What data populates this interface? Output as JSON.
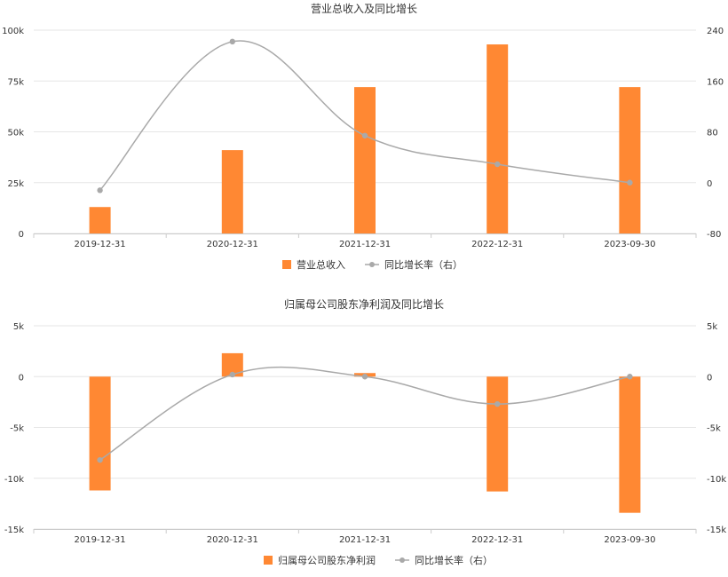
{
  "colors": {
    "bar": "#ff8833",
    "line": "#a9a9a9",
    "grid": "#e6e6e6",
    "axis": "#cccccc"
  },
  "chart_data": [
    {
      "type": "bar",
      "title": "营业总收入及同比增长",
      "categories": [
        "2019-12-31",
        "2020-12-31",
        "2021-12-31",
        "2022-12-31",
        "2023-09-30"
      ],
      "series": [
        {
          "name": "营业总收入",
          "type": "bar",
          "axis": "left",
          "values": [
            13000,
            41000,
            72000,
            93000,
            72000
          ]
        },
        {
          "name": "同比增长率（右）",
          "type": "line",
          "axis": "right",
          "values": [
            -12,
            222,
            74,
            29,
            0
          ]
        }
      ],
      "left_axis": {
        "ylim": [
          0,
          100000
        ],
        "ticks": [
          0,
          25000,
          50000,
          75000,
          100000
        ],
        "tick_labels": [
          "0",
          "25k",
          "50k",
          "75k",
          "100k"
        ]
      },
      "right_axis": {
        "ylim": [
          -80,
          240
        ],
        "ticks": [
          -80,
          0,
          80,
          160,
          240
        ],
        "tick_labels": [
          "-80",
          "0",
          "80",
          "160",
          "240"
        ]
      },
      "legend": {
        "position": "bottom",
        "items": [
          "营业总收入",
          "同比增长率（右）"
        ]
      },
      "grid": true
    },
    {
      "type": "bar",
      "title": "归属母公司股东净利润及同比增长",
      "categories": [
        "2019-12-31",
        "2020-12-31",
        "2021-12-31",
        "2022-12-31",
        "2023-09-30"
      ],
      "series": [
        {
          "name": "归属母公司股东净利润",
          "type": "bar",
          "axis": "left",
          "values": [
            -11200,
            2300,
            350,
            -11300,
            -13400
          ]
        },
        {
          "name": "同比增长率（右）",
          "type": "line",
          "axis": "right",
          "values": [
            -8.2,
            0.2,
            0,
            -2.7,
            0
          ]
        }
      ],
      "left_axis": {
        "ylim": [
          -15000,
          5000
        ],
        "ticks": [
          -15000,
          -10000,
          -5000,
          0,
          5000
        ],
        "tick_labels": [
          "-15k",
          "-10k",
          "-5k",
          "0",
          "5k"
        ]
      },
      "right_axis": {
        "ylim": [
          -15,
          5
        ],
        "ticks": [
          -15,
          -10,
          -5,
          0,
          5
        ],
        "tick_labels": [
          "-15k",
          "-10k",
          "-5k",
          "0",
          "5k"
        ]
      },
      "legend": {
        "position": "bottom",
        "items": [
          "归属母公司股东净利润",
          "同比增长率（右）"
        ]
      },
      "grid": true
    }
  ]
}
